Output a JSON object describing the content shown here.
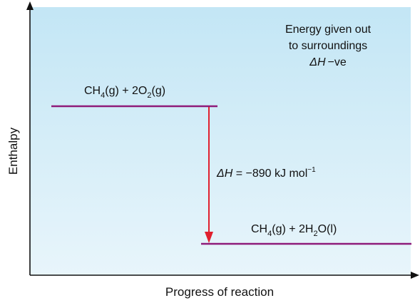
{
  "title": "",
  "axes": {
    "y_label": "Enthalpy",
    "x_label": "Progress of reaction"
  },
  "note": {
    "line1": "Energy given out",
    "line2": "to surroundings",
    "line3_symbol": "ΔH",
    "line3_text": "−ve"
  },
  "reactants": {
    "part1": "CH",
    "sub1": "4",
    "part2": "(g) + 2O",
    "sub2": "2",
    "part3": "(g)"
  },
  "products": {
    "part1": "CH",
    "sub1": "4",
    "part2": "(g) + 2H",
    "sub2": "2",
    "part3": "O(l)"
  },
  "enthalpy_change": {
    "symbol": "ΔH",
    "text": " = −890 kJ mol",
    "superscript": "−1"
  },
  "colors": {
    "background_top": "#c3e6f5",
    "background_bottom": "#e8f5fb",
    "level_line": "#8e1b7a",
    "arrow": "#e0202e",
    "axis": "#111111"
  }
}
